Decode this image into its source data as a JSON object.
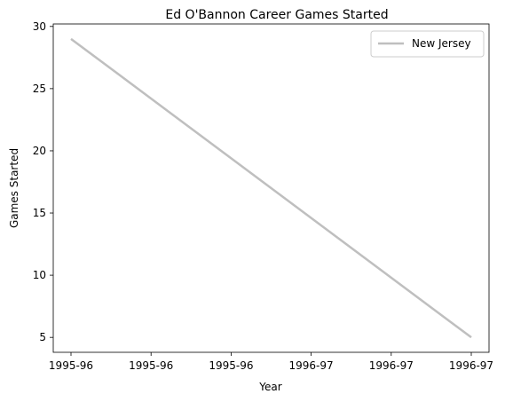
{
  "chart_data": {
    "type": "line",
    "title": "Ed O'Bannon Career Games Started",
    "xlabel": "Year",
    "ylabel": "Games Started",
    "x_tick_labels": [
      "1995-96",
      "1995-96",
      "1995-96",
      "1996-97",
      "1996-97",
      "1996-97"
    ],
    "y_ticks": [
      5,
      10,
      15,
      20,
      25,
      30
    ],
    "ylim": [
      3.8,
      30.2
    ],
    "grid": false,
    "legend_placement": "top-right",
    "series": [
      {
        "name": "New Jersey",
        "color": "#bfbfbf",
        "x": [
          "1995-96",
          "1996-97"
        ],
        "values": [
          29,
          5
        ]
      }
    ]
  }
}
